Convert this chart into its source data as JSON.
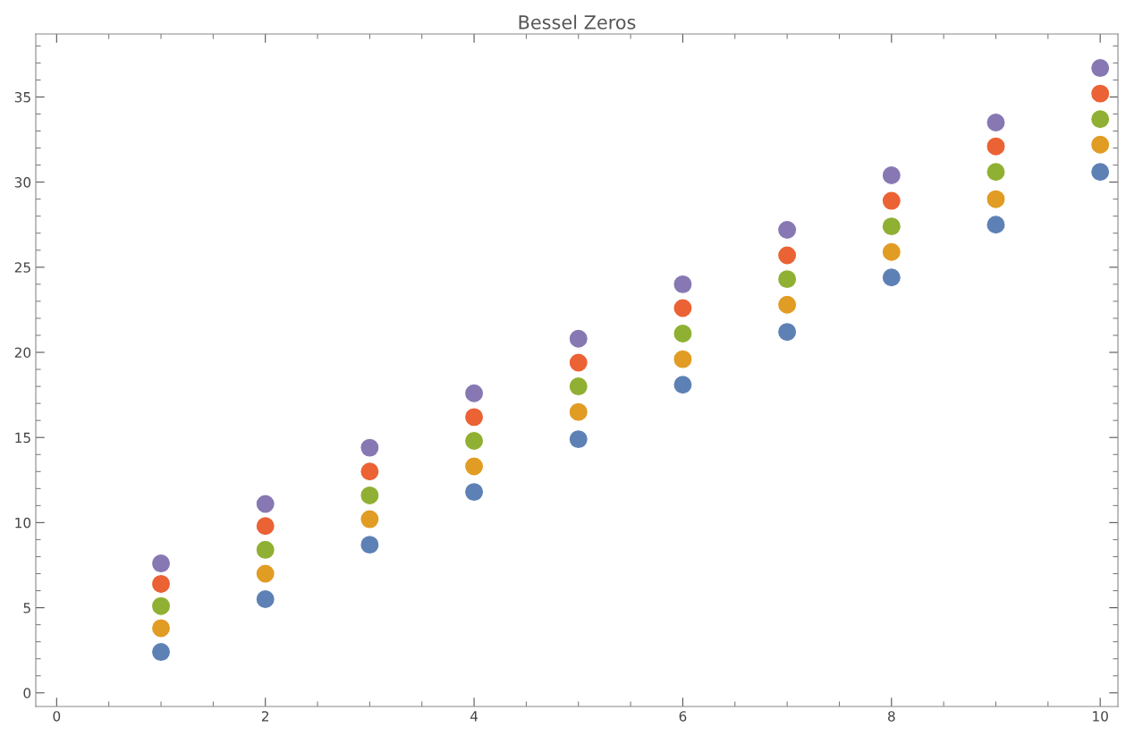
{
  "chart_data": {
    "type": "scatter",
    "title": "Bessel Zeros",
    "x": [
      1,
      2,
      3,
      4,
      5,
      6,
      7,
      8,
      9,
      10
    ],
    "series": [
      {
        "color": "#5e81b5",
        "values": [
          2.4,
          5.5,
          8.7,
          11.8,
          14.9,
          18.1,
          21.2,
          24.4,
          27.5,
          30.6
        ]
      },
      {
        "color": "#e19c24",
        "values": [
          3.8,
          7.0,
          10.2,
          13.3,
          16.5,
          19.6,
          22.8,
          25.9,
          29.0,
          32.2
        ]
      },
      {
        "color": "#8fb032",
        "values": [
          5.1,
          8.4,
          11.6,
          14.8,
          18.0,
          21.1,
          24.3,
          27.4,
          30.6,
          33.7
        ]
      },
      {
        "color": "#eb6235",
        "values": [
          6.4,
          9.8,
          13.0,
          16.2,
          19.4,
          22.6,
          25.7,
          28.9,
          32.1,
          35.2
        ]
      },
      {
        "color": "#8778b3",
        "values": [
          7.6,
          11.1,
          14.4,
          17.6,
          20.8,
          24.0,
          27.2,
          30.4,
          33.5,
          36.7
        ]
      }
    ],
    "xlim": [
      -0.2,
      10.17
    ],
    "ylim": [
      -0.8,
      38.7
    ],
    "xticks": [
      0,
      2,
      4,
      6,
      8,
      10
    ],
    "yticks": [
      0,
      5,
      10,
      15,
      20,
      25,
      30,
      35
    ],
    "marker": "circle",
    "grid": false,
    "legend": false
  }
}
